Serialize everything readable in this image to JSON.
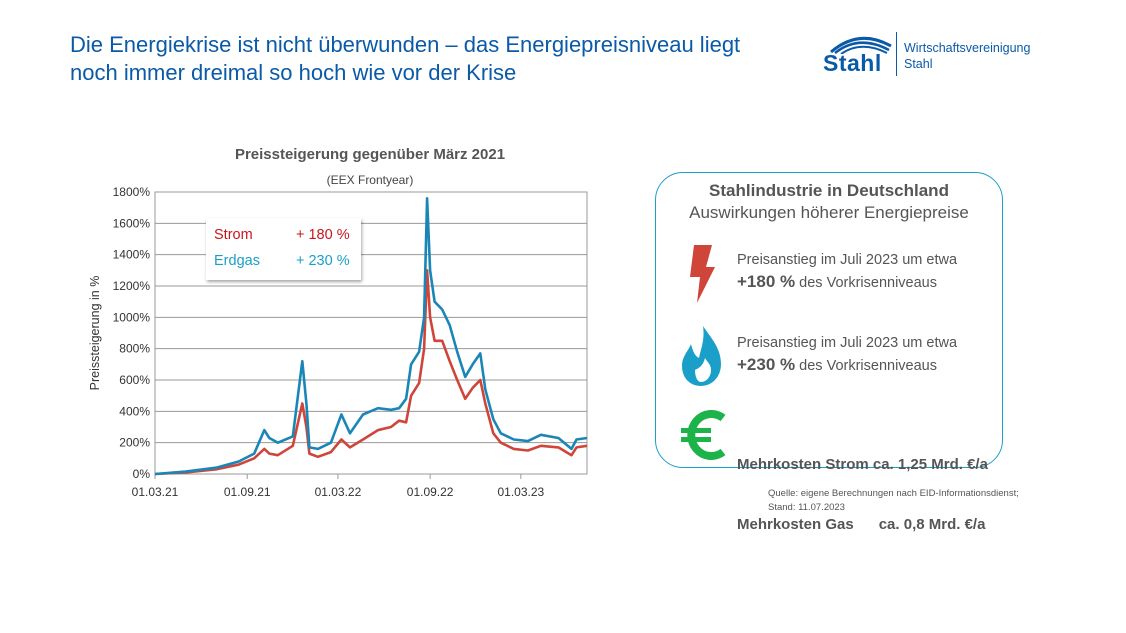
{
  "header": {
    "title_line1": "Die Energiekrise ist nicht überwunden – das Energiepreisniveau liegt",
    "title_line2": "noch immer dreimal so hoch wie vor der Krise"
  },
  "logo": {
    "word": "Stahl",
    "name_line1": "Wirtschaftsvereinigung",
    "name_line2": "Stahl",
    "color": "#0a5aa8"
  },
  "chart_data": {
    "type": "line",
    "title": "Preissteigerung gegenüber März 2021",
    "subtitle": "(EEX Frontyear)",
    "xlabel": "",
    "ylabel": "Preissteigerung in %",
    "ylim": [
      0,
      1800
    ],
    "yticks": [
      "0%",
      "200%",
      "400%",
      "600%",
      "800%",
      "1000%",
      "1200%",
      "1400%",
      "1600%",
      "1800%"
    ],
    "xlim": [
      "2021-03-01",
      "2023-07-11"
    ],
    "xticks": [
      {
        "date": "2021-03-01",
        "label": "01.03.21"
      },
      {
        "date": "2021-09-01",
        "label": "01.09.21"
      },
      {
        "date": "2022-03-01",
        "label": "01.03.22"
      },
      {
        "date": "2022-09-01",
        "label": "01.09.22"
      },
      {
        "date": "2023-03-01",
        "label": "01.03.23"
      }
    ],
    "grid": true,
    "legend": {
      "position": "top-left",
      "entries": [
        {
          "name": "Strom",
          "value_label": "+ 180 %"
        },
        {
          "name": "Erdgas",
          "value_label": "+ 230 %"
        }
      ]
    },
    "x": [
      "2021-03-01",
      "2021-05-01",
      "2021-07-01",
      "2021-08-15",
      "2021-09-15",
      "2021-10-05",
      "2021-10-15",
      "2021-11-01",
      "2021-12-01",
      "2021-12-20",
      "2021-12-28",
      "2022-01-03",
      "2022-01-20",
      "2022-02-15",
      "2022-03-08",
      "2022-03-25",
      "2022-04-20",
      "2022-05-20",
      "2022-06-15",
      "2022-07-01",
      "2022-07-15",
      "2022-07-25",
      "2022-08-10",
      "2022-08-20",
      "2022-08-26",
      "2022-09-01",
      "2022-09-10",
      "2022-09-25",
      "2022-10-10",
      "2022-10-25",
      "2022-11-10",
      "2022-11-25",
      "2022-12-10",
      "2022-12-20",
      "2023-01-05",
      "2023-01-20",
      "2023-02-15",
      "2023-03-15",
      "2023-04-10",
      "2023-05-15",
      "2023-06-10",
      "2023-06-20",
      "2023-07-11"
    ],
    "series": [
      {
        "name": "Strom",
        "color": "#d0453a",
        "values": [
          0,
          10,
          30,
          60,
          100,
          160,
          130,
          120,
          180,
          450,
          300,
          130,
          110,
          140,
          220,
          170,
          220,
          280,
          300,
          340,
          330,
          500,
          580,
          800,
          1300,
          1000,
          850,
          850,
          720,
          600,
          480,
          550,
          600,
          450,
          260,
          200,
          160,
          150,
          180,
          170,
          120,
          170,
          180
        ]
      },
      {
        "name": "Erdgas",
        "color": "#1a86b8",
        "values": [
          0,
          15,
          40,
          80,
          130,
          280,
          230,
          200,
          240,
          720,
          450,
          170,
          160,
          200,
          380,
          260,
          380,
          420,
          410,
          420,
          480,
          700,
          780,
          1000,
          1760,
          1300,
          1100,
          1050,
          950,
          780,
          620,
          700,
          770,
          540,
          350,
          260,
          220,
          210,
          250,
          230,
          160,
          220,
          230
        ]
      }
    ]
  },
  "panel": {
    "heading": "Stahlindustrie in Deutschland",
    "subheading": "Auswirkungen höherer Energiepreise",
    "strom_line1": "Preisanstieg im Juli 2023 um etwa",
    "strom_value": "+180 %",
    "strom_rest": " des Vorkrisenniveaus",
    "gas_line1": "Preisanstieg im Juli 2023 um etwa",
    "gas_value": "+230 %",
    "gas_rest": " des Vorkrisenniveaus",
    "cost_strom": "Mehrkosten Strom ca. 1,25 Mrd. €/a",
    "cost_gas": "Mehrkosten Gas      ca. 0,8 Mrd. €/a",
    "icons": {
      "strom": "lightning-icon",
      "gas": "flame-icon",
      "cost": "euro-icon"
    },
    "colors": {
      "strom": "#d0453a",
      "gas": "#1aa0c8",
      "cost": "#1cb34a",
      "border": "#1aa0c8"
    }
  },
  "source": {
    "line1": "Quelle: eigene Berechnungen nach EID-Informationsdienst;",
    "line2": "Stand: 11.07.2023"
  }
}
